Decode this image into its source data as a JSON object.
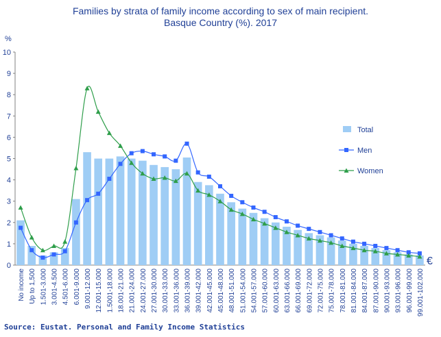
{
  "chart_data": {
    "type": "bar",
    "title": "Families by strata of family income according to sex of main recipient.",
    "subtitle": "Basque Country (%). 2017",
    "ylabel": "%",
    "xlabel": "",
    "unit_label": "€",
    "ylim": [
      0,
      10
    ],
    "yticks": [
      "0",
      "1",
      "2",
      "3",
      "4",
      "5",
      "6",
      "7",
      "8",
      "9",
      "10"
    ],
    "grid": false,
    "legend_position": "right",
    "categories": [
      "No income",
      "Up to 1,500",
      "1.501-3.000",
      "3.001-4.500",
      "4.501-6.000",
      "6.001-9.000",
      "9.001-12.000",
      "12.001-15.000",
      "1.5001-18.000",
      "18.001-21.000",
      "21.001-24.000",
      "24.001-27.000",
      "27.001-30.000",
      "30.001-33.000",
      "33.001-36.000",
      "36.001-39.000",
      "39.001-42.000",
      "42.001-45.000",
      "45.001-48.000",
      "48.001-51.000",
      "51.001-54.000",
      "54.001-57.000",
      "57.001-60.000",
      "60.001-63.000",
      "63.001-66.000",
      "66.001-69.000",
      "69.001-72.000",
      "72.001-75.000",
      "75.001-78.000",
      "78.001-81.000",
      "81.001-84.000",
      "84.001-87.000",
      "87.001-90.000",
      "90.001-93.000",
      "93.001-96.000",
      "96.001-99.000",
      "99.001-102.000"
    ],
    "series": [
      {
        "name": "Total",
        "type": "bar",
        "color": "#9fcdf5",
        "values": [
          2.1,
          0.9,
          0.45,
          0.6,
          0.8,
          3.1,
          5.3,
          5.0,
          5.0,
          5.1,
          5.0,
          4.9,
          4.7,
          4.6,
          4.5,
          5.05,
          3.9,
          3.75,
          3.35,
          2.95,
          2.65,
          2.45,
          2.2,
          2.0,
          1.8,
          1.65,
          1.5,
          1.4,
          1.3,
          1.15,
          1.0,
          0.9,
          0.8,
          0.7,
          0.6,
          0.5,
          0.45
        ]
      },
      {
        "name": "Men",
        "type": "line",
        "color": "#3366ff",
        "values": [
          1.75,
          0.7,
          0.35,
          0.5,
          0.65,
          2.0,
          3.05,
          3.35,
          4.05,
          4.75,
          5.25,
          5.35,
          5.2,
          5.1,
          4.9,
          5.7,
          4.35,
          4.15,
          3.7,
          3.25,
          2.95,
          2.7,
          2.5,
          2.25,
          2.05,
          1.85,
          1.7,
          1.55,
          1.4,
          1.25,
          1.1,
          1.0,
          0.9,
          0.8,
          0.7,
          0.6,
          0.55
        ]
      },
      {
        "name": "Women",
        "type": "line",
        "color": "#2e9e4a",
        "values": [
          2.7,
          1.3,
          0.7,
          0.9,
          1.1,
          4.55,
          8.3,
          7.2,
          6.2,
          5.6,
          4.8,
          4.3,
          4.05,
          4.1,
          3.95,
          4.3,
          3.5,
          3.3,
          3.0,
          2.6,
          2.4,
          2.15,
          1.95,
          1.75,
          1.55,
          1.4,
          1.25,
          1.15,
          1.05,
          0.9,
          0.8,
          0.7,
          0.65,
          0.55,
          0.5,
          0.45,
          0.4
        ]
      }
    ],
    "source": "Source: Eustat. Personal and Family Income Statistics"
  }
}
